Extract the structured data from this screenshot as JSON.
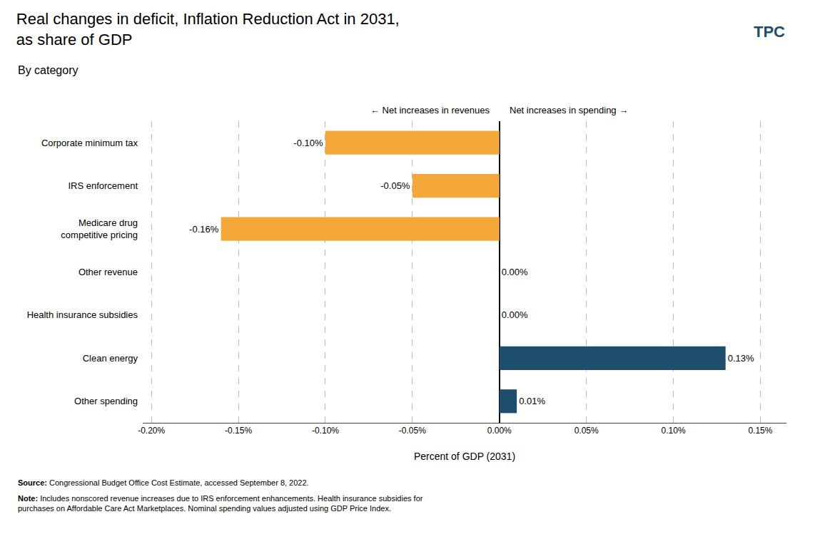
{
  "chart_data": {
    "type": "bar",
    "orientation": "horizontal",
    "title": "Real changes in deficit, Inflation Reduction Act in 2031,\nas share of GDP",
    "subtitle": "By category",
    "categories": [
      "Corporate minimum tax",
      "IRS enforcement",
      "Medicare drug\ncompetitive pricing",
      "Other revenue",
      "Health insurance subsidies",
      "Clean energy",
      "Other spending"
    ],
    "values": [
      -0.1,
      -0.05,
      -0.16,
      0.0,
      0.0,
      0.13,
      0.01
    ],
    "value_labels": [
      "-0.10%",
      "-0.05%",
      "-0.16%",
      "0.00%",
      "0.00%",
      "0.13%",
      "0.01%"
    ],
    "data_labels": true,
    "colors": [
      "#F5A83A",
      "#F5A83A",
      "#F5A83A",
      "#F5A83A",
      "#1D4E6E",
      "#1D4E6E",
      "#1D4E6E"
    ],
    "x_label": "Percent of GDP (2031)",
    "xlim": [
      -0.205,
      0.165
    ],
    "xticks": [
      {
        "value": -0.2,
        "label": "-0.20%"
      },
      {
        "value": -0.15,
        "label": "-0.15%"
      },
      {
        "value": -0.1,
        "label": "-0.10%"
      },
      {
        "value": -0.05,
        "label": "-0.05%"
      },
      {
        "value": 0.0,
        "label": "0.00%"
      },
      {
        "value": 0.05,
        "label": "0.05%"
      },
      {
        "value": 0.1,
        "label": "0.10%"
      },
      {
        "value": 0.15,
        "label": "0.15%"
      }
    ],
    "grid": true,
    "annotations": [
      "← Net increases in revenues",
      "Net increases in spending →"
    ],
    "notes": [
      "Source: Congressional Budget Office Cost Estimate, accessed September 8, 2022.",
      "Note: Includes nonscored revenue increases due to IRS enforcement enhancements. Health insurance subsidies for\npurchases on Affordable Care Act Marketplaces. Nominal spending values adjusted using GDP Price Index."
    ],
    "logo_text": "TPC"
  }
}
